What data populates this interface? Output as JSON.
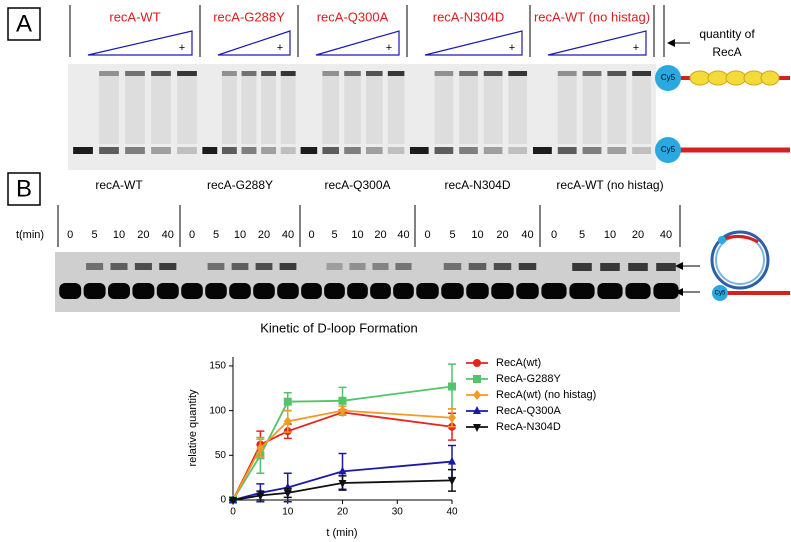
{
  "panel_a": {
    "label": "A",
    "lanes": [
      "recA-WT",
      "recA-G288Y",
      "recA-Q300A",
      "recA-N304D",
      "recA-WT (no histag)"
    ],
    "plus": "+",
    "quantity_label": [
      "quantity of",
      "RecA"
    ],
    "probe_label": "Cy5"
  },
  "panel_b": {
    "label": "B",
    "lanes": [
      "recA-WT",
      "recA-G288Y",
      "recA-Q300A",
      "recA-N304D",
      "recA-WT (no histag)"
    ],
    "time_label": "t(min)",
    "time_points": [
      "0",
      "5",
      "10",
      "20",
      "40"
    ],
    "probe_label": "Cy5"
  },
  "chart_data": {
    "type": "line",
    "title": "Kinetic of D-loop Formation",
    "x_label": "t (min)",
    "y_label": "relative quantity",
    "x": [
      0,
      5,
      10,
      20,
      40
    ],
    "xlim": [
      0,
      40
    ],
    "xticks": [
      0,
      10,
      20,
      30,
      40
    ],
    "ylim": [
      0,
      160
    ],
    "yticks": [
      0,
      50,
      100,
      150
    ],
    "legend": "right",
    "series": [
      {
        "name": "RecA(wt)",
        "color": "#e8231c",
        "marker": "circle",
        "values": [
          0,
          62,
          77,
          98,
          82
        ],
        "errors": [
          0,
          15,
          8,
          3,
          15
        ]
      },
      {
        "name": "RecA-G288Y",
        "color": "#52c46a",
        "marker": "square",
        "values": [
          0,
          50,
          110,
          111,
          127
        ],
        "errors": [
          0,
          20,
          10,
          15,
          25
        ]
      },
      {
        "name": "RecA(wt) (no histag)",
        "color": "#f59a23",
        "marker": "diamond",
        "values": [
          0,
          58,
          88,
          100,
          92
        ],
        "errors": [
          0,
          10,
          12,
          5,
          10
        ]
      },
      {
        "name": "RecA-Q300A",
        "color": "#1a1aa8",
        "marker": "triangle",
        "values": [
          0,
          8,
          14,
          32,
          43
        ],
        "errors": [
          0,
          10,
          16,
          20,
          18
        ]
      },
      {
        "name": "RecA-N304D",
        "color": "#111111",
        "marker": "triangle-down",
        "values": [
          0,
          5,
          8,
          19,
          22
        ],
        "errors": [
          0,
          5,
          5,
          8,
          12
        ]
      }
    ]
  }
}
